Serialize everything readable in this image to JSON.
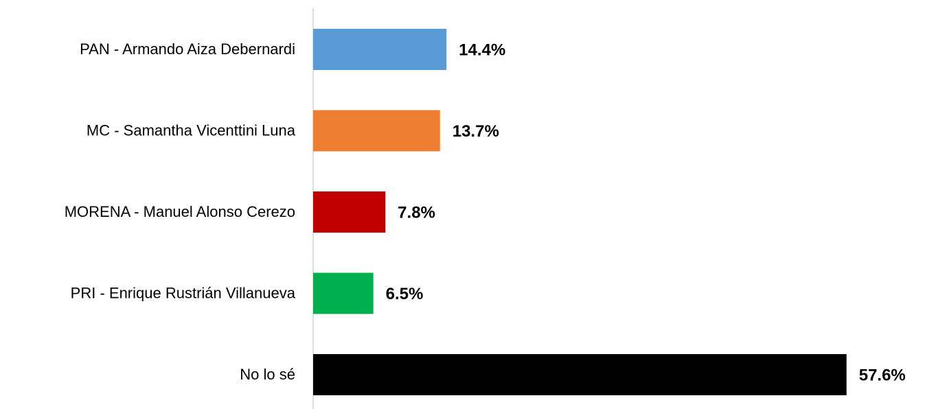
{
  "chart_data": {
    "type": "hbar",
    "categories": [
      "PAN - Armando Aiza Debernardi",
      "MC - Samantha Vicenttini Luna",
      "MORENA - Manuel Alonso Cerezo",
      "PRI - Enrique Rustrián Villanueva",
      "No lo sé"
    ],
    "values": [
      14.4,
      13.7,
      7.8,
      6.5,
      57.6
    ],
    "value_labels": [
      "14.4%",
      "13.7%",
      "7.8%",
      "6.5%",
      "57.6%"
    ],
    "colors": [
      "#5b9bd5",
      "#ed7d31",
      "#c00000",
      "#00b050",
      "#000000"
    ],
    "xlim": [
      0,
      66
    ]
  }
}
